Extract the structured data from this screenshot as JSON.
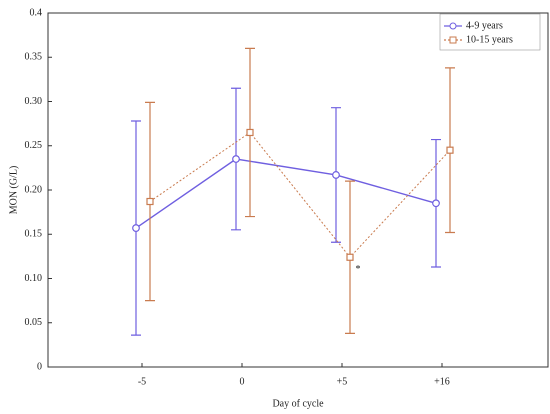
{
  "chart_data": {
    "type": "line",
    "x_label": "Day of cycle",
    "y_label": "MON (G/L)",
    "categories": [
      "-5",
      "0",
      "+5",
      "+16"
    ],
    "series": [
      {
        "name": "4-9 years",
        "color": "#6f5fe0",
        "marker": "circle",
        "dashed": false,
        "values": [
          0.157,
          0.235,
          0.217,
          0.185
        ],
        "errors": [
          0.121,
          0.08,
          0.076,
          0.072
        ]
      },
      {
        "name": "10-15 years",
        "color": "#c97b4f",
        "marker": "square",
        "dashed": true,
        "values": [
          0.187,
          0.265,
          0.124,
          0.245
        ],
        "errors": [
          0.112,
          0.095,
          0.086,
          0.093
        ]
      }
    ],
    "annotations": [
      {
        "text": "*",
        "category": 2,
        "y": 0.11
      }
    ],
    "ylim": [
      0,
      0.4
    ],
    "yticks": [
      0,
      0.05,
      {
        "value": 0.1,
        "label": "0.10"
      },
      0.15,
      {
        "value": 0.2,
        "label": "0.20"
      },
      0.25,
      {
        "value": 0.3,
        "label": "0.30"
      },
      0.35,
      0.4
    ],
    "legend": "top-right"
  }
}
